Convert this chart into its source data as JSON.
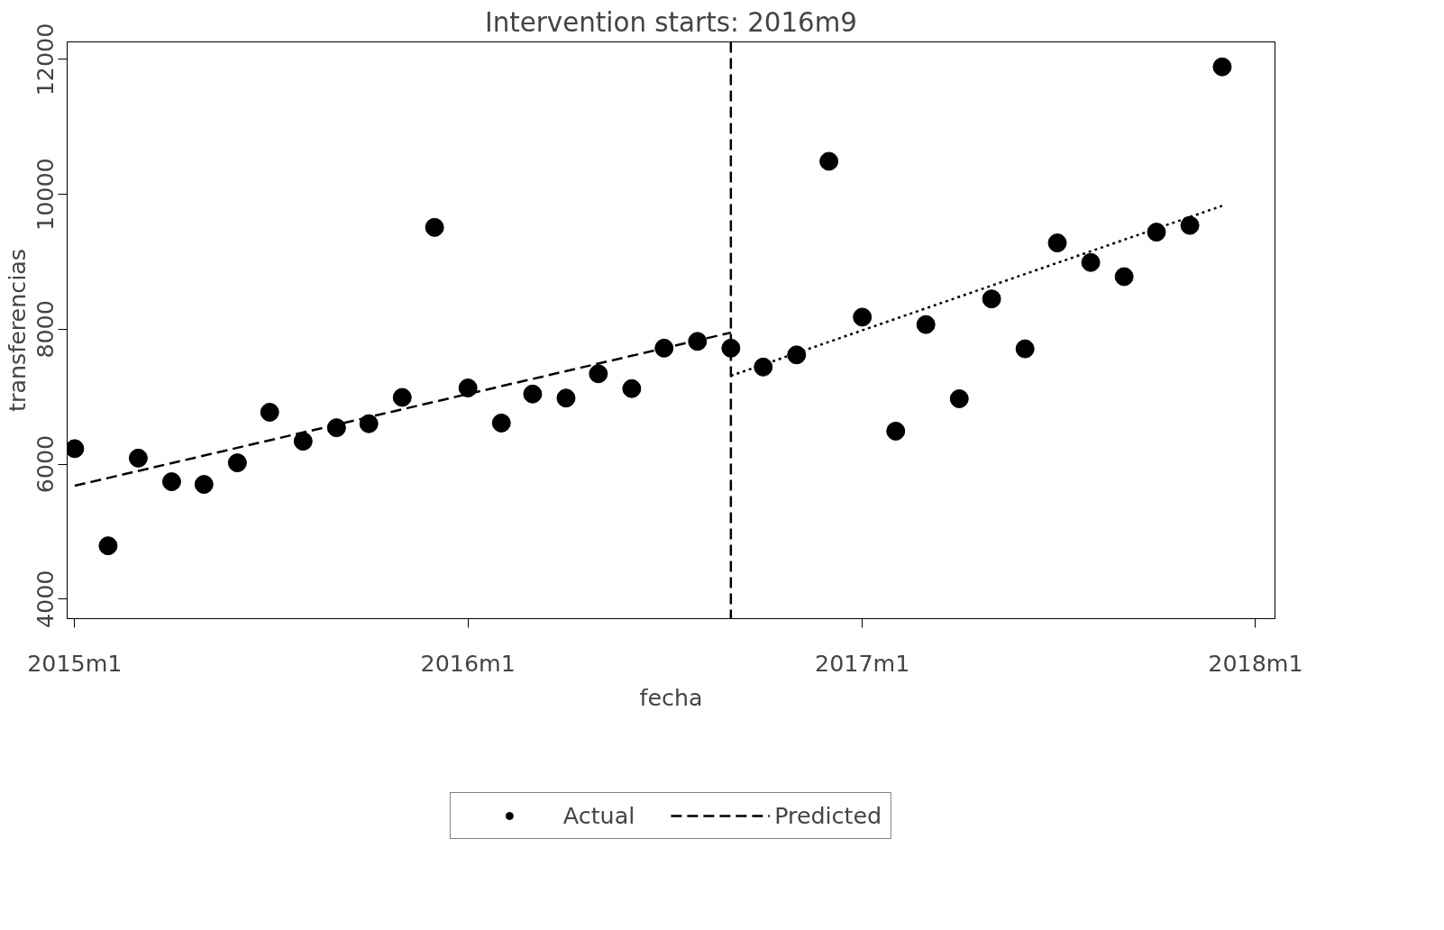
{
  "chart_data": {
    "type": "scatter",
    "title": "Intervention starts: 2016m9",
    "xlabel": "fecha",
    "ylabel": "transferencias",
    "xlim": [
      "2014-12-25",
      "2018-01-19"
    ],
    "ylim": [
      3710,
      12260
    ],
    "xticks": [
      {
        "value": "2015-01",
        "label": "2015m1"
      },
      {
        "value": "2016-01",
        "label": "2016m1"
      },
      {
        "value": "2017-01",
        "label": "2017m1"
      },
      {
        "value": "2018-01",
        "label": "2018m1"
      }
    ],
    "yticks": [
      4000,
      6000,
      8000,
      10000,
      12000
    ],
    "legend": "bottom",
    "ref_lines": [
      {
        "axis": "x",
        "value": "2016-09",
        "color": "#000000",
        "line_style": "dashed"
      }
    ],
    "series": [
      {
        "name": "Actual",
        "color": "#000000",
        "marker": "circle",
        "x": [
          "2015-01",
          "2015-02",
          "2015-03",
          "2015-04",
          "2015-05",
          "2015-06",
          "2015-07",
          "2015-08",
          "2015-09",
          "2015-10",
          "2015-11",
          "2015-12",
          "2016-01",
          "2016-02",
          "2016-03",
          "2016-04",
          "2016-05",
          "2016-06",
          "2016-07",
          "2016-08",
          "2016-09",
          "2016-10",
          "2016-11",
          "2016-12",
          "2017-01",
          "2017-02",
          "2017-03",
          "2017-04",
          "2017-05",
          "2017-06",
          "2017-07",
          "2017-08",
          "2017-09",
          "2017-10",
          "2017-11",
          "2017-12"
        ],
        "values": [
          6230,
          4790,
          6090,
          5740,
          5700,
          6020,
          6770,
          6340,
          6540,
          6600,
          6990,
          9510,
          7130,
          6610,
          7040,
          6980,
          7340,
          7120,
          7720,
          7820,
          7720,
          7440,
          7620,
          10490,
          8180,
          6490,
          8070,
          6970,
          8450,
          7710,
          9280,
          8990,
          8780,
          9440,
          9540,
          11890
        ]
      },
      {
        "name": "Predicted",
        "type": "line",
        "color": "#000000",
        "line_style": "dashed",
        "x": [
          "2015-01",
          "2016-09"
        ],
        "values": [
          5680,
          7950
        ]
      },
      {
        "type": "line",
        "color": "#000000",
        "line_style": "dotted",
        "x": [
          "2016-09",
          "2017-12"
        ],
        "values": [
          7310,
          9830
        ]
      }
    ]
  }
}
